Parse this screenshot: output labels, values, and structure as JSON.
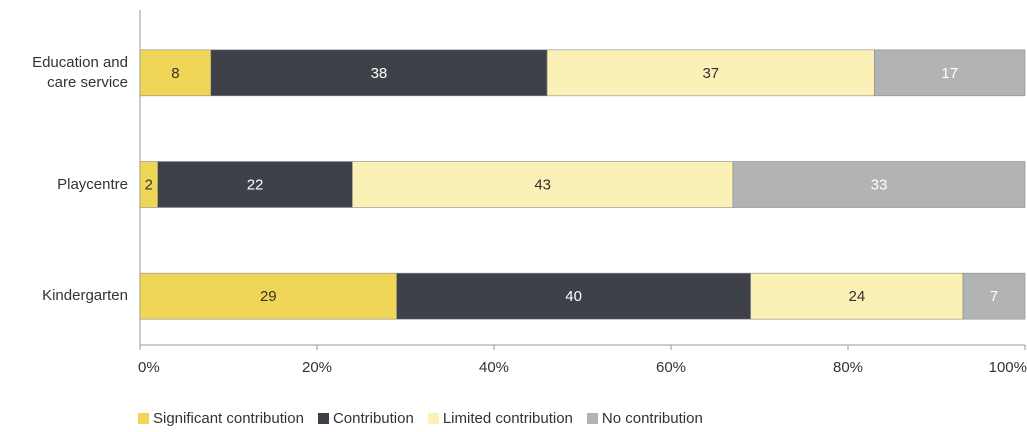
{
  "chart_data": {
    "type": "stacked_bar_horizontal",
    "categories": [
      "Education and care service",
      "Playcentre",
      "Kindergarten"
    ],
    "series": [
      {
        "name": "Significant contribution",
        "color": "#f0d656",
        "values": [
          8,
          2,
          29
        ]
      },
      {
        "name": "Contribution",
        "color": "#3e4148",
        "values": [
          38,
          22,
          40
        ]
      },
      {
        "name": "Limited contribution",
        "color": "#fbf0b5",
        "values": [
          37,
          43,
          24
        ]
      },
      {
        "name": "No contribution",
        "color": "#b2b3b5",
        "values": [
          17,
          33,
          7
        ]
      }
    ],
    "xlim": [
      0,
      100
    ],
    "xticks": [
      {
        "value": 0,
        "label": "0%"
      },
      {
        "value": 20,
        "label": "20%"
      },
      {
        "value": 40,
        "label": "40%"
      },
      {
        "value": 60,
        "label": "60%"
      },
      {
        "value": 80,
        "label": "80%"
      },
      {
        "value": 100,
        "label": "100%"
      }
    ],
    "legend": "bottom"
  }
}
